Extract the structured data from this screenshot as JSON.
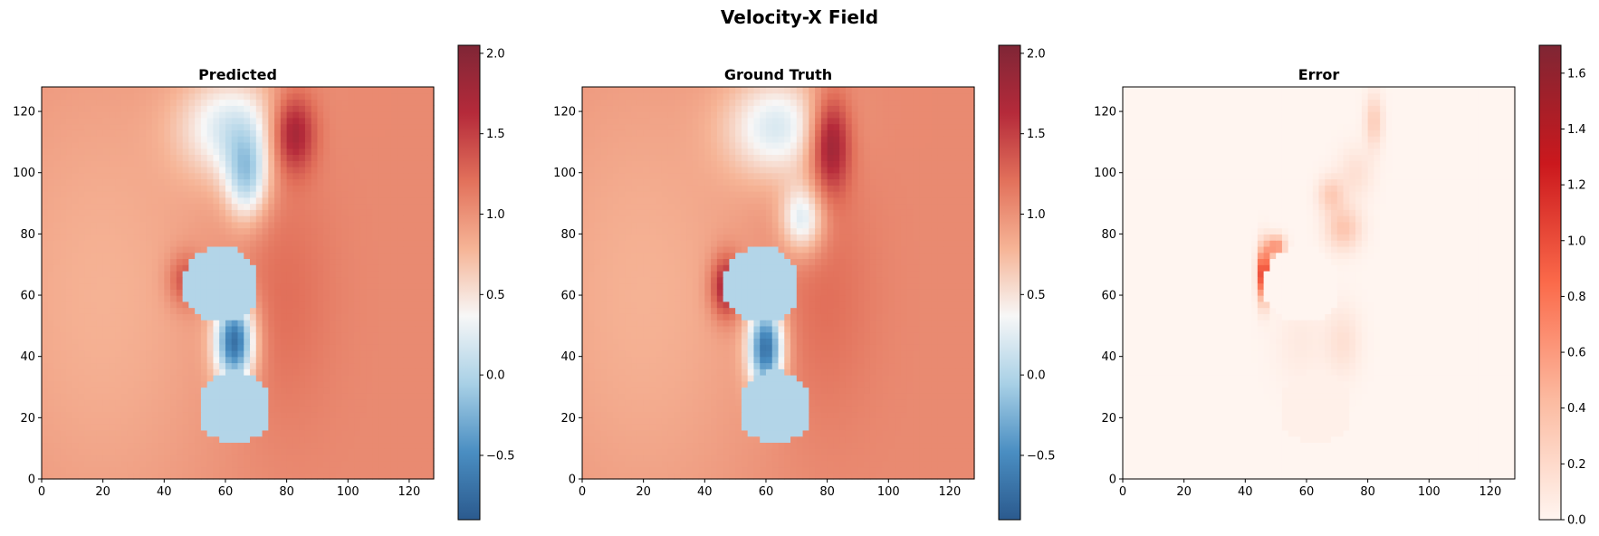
{
  "figure": {
    "title": "Velocity-X Field"
  },
  "colormap": {
    "name": "RdBu_r",
    "stops": [
      "#2b5a8e",
      "#4a8ec2",
      "#a8d0e6",
      "#f7f7f7",
      "#f6b496",
      "#e2715b",
      "#b52a3a",
      "#7f2636"
    ]
  },
  "error_colormap": {
    "name": "Reds",
    "stops": [
      "#fff5f0",
      "#fcbba1",
      "#fb6a4a",
      "#cb181d",
      "#7f2634"
    ]
  },
  "chart_data": [
    {
      "type": "heatmap",
      "title": "Predicted",
      "xlim": [
        0,
        128
      ],
      "ylim": [
        0,
        128
      ],
      "xticks": [
        0,
        20,
        40,
        60,
        80,
        100,
        120
      ],
      "yticks": [
        0,
        20,
        40,
        60,
        80,
        100,
        120
      ],
      "colorbar": {
        "vmin": -0.9,
        "vmax": 2.05,
        "ticks": [
          -0.5,
          0.0,
          0.5,
          1.0,
          1.5,
          2.0
        ],
        "tick_labels": [
          "−0.5",
          "0.0",
          "0.5",
          "1.0",
          "1.5",
          "2.0"
        ]
      },
      "field": {
        "free_stream": 1.05,
        "obstacles": [
          {
            "cx": 58.5,
            "cy": 63.5,
            "r": 12.5,
            "value": 0.0
          },
          {
            "cx": 63,
            "cy": 23.5,
            "r": 12,
            "value": 0.0
          }
        ],
        "features": [
          {
            "cx": 82,
            "cy": 113,
            "sx": 5,
            "sy": 9,
            "amp": 0.85
          },
          {
            "cx": 47,
            "cy": 65,
            "sx": 4,
            "sy": 6,
            "amp": 0.5
          },
          {
            "cx": 78,
            "cy": 60,
            "sx": 12,
            "sy": 30,
            "amp": 0.2
          },
          {
            "cx": 63,
            "cy": 45,
            "sx": 4.5,
            "sy": 10,
            "amp": -1.75
          },
          {
            "cx": 67,
            "cy": 98,
            "sx": 5,
            "sy": 10,
            "amp": -0.9
          },
          {
            "cx": 62,
            "cy": 115,
            "sx": 12,
            "sy": 12,
            "amp": -0.8
          },
          {
            "cx": 20,
            "cy": 60,
            "sx": 30,
            "sy": 60,
            "amp": -0.25
          }
        ]
      }
    },
    {
      "type": "heatmap",
      "title": "Ground Truth",
      "xlim": [
        0,
        128
      ],
      "ylim": [
        0,
        128
      ],
      "xticks": [
        0,
        20,
        40,
        60,
        80,
        100,
        120
      ],
      "yticks": [
        0,
        20,
        40,
        60,
        80,
        100,
        120
      ],
      "colorbar": {
        "vmin": -0.9,
        "vmax": 2.05,
        "ticks": [
          -0.5,
          0.0,
          0.5,
          1.0,
          1.5,
          2.0
        ],
        "tick_labels": [
          "−0.5",
          "0.0",
          "0.5",
          "1.0",
          "1.5",
          "2.0"
        ]
      },
      "field": {
        "free_stream": 1.05,
        "obstacles": [
          {
            "cx": 58.5,
            "cy": 63.5,
            "r": 12.5,
            "value": 0.0
          },
          {
            "cx": 63,
            "cy": 23.5,
            "r": 12,
            "value": 0.0
          }
        ],
        "features": [
          {
            "cx": 81,
            "cy": 110,
            "sx": 4.5,
            "sy": 11,
            "amp": 0.95
          },
          {
            "cx": 47,
            "cy": 63,
            "sx": 3.5,
            "sy": 7,
            "amp": 0.85
          },
          {
            "cx": 78,
            "cy": 60,
            "sx": 12,
            "sy": 30,
            "amp": 0.2
          },
          {
            "cx": 60,
            "cy": 43,
            "sx": 4,
            "sy": 10,
            "amp": -1.7
          },
          {
            "cx": 72,
            "cy": 85,
            "sx": 5,
            "sy": 8,
            "amp": -0.85
          },
          {
            "cx": 64,
            "cy": 115,
            "sx": 12,
            "sy": 12,
            "amp": -0.8
          },
          {
            "cx": 20,
            "cy": 60,
            "sx": 30,
            "sy": 60,
            "amp": -0.25
          }
        ]
      }
    },
    {
      "type": "heatmap",
      "title": "Error",
      "xlim": [
        0,
        128
      ],
      "ylim": [
        0,
        128
      ],
      "xticks": [
        0,
        20,
        40,
        60,
        80,
        100,
        120
      ],
      "yticks": [
        0,
        20,
        40,
        60,
        80,
        100,
        120
      ],
      "colorbar": {
        "vmin": 0.0,
        "vmax": 1.7,
        "ticks": [
          0.0,
          0.2,
          0.4,
          0.6,
          0.8,
          1.0,
          1.2,
          1.4,
          1.6
        ],
        "tick_labels": [
          "0.0",
          "0.2",
          "0.4",
          "0.6",
          "0.8",
          "1.0",
          "1.2",
          "1.4",
          "1.6"
        ]
      },
      "field": {
        "free_stream": 0.0,
        "obstacles": [
          {
            "cx": 58.5,
            "cy": 63.5,
            "r": 12.5,
            "value": 0.0
          },
          {
            "cx": 63,
            "cy": 23.5,
            "r": 12,
            "value": 0.04
          }
        ],
        "features": [
          {
            "cx": 46,
            "cy": 67,
            "sx": 1.3,
            "sy": 6,
            "amp": 1.3
          },
          {
            "cx": 50,
            "cy": 76,
            "sx": 2,
            "sy": 2.5,
            "amp": 0.7
          },
          {
            "cx": 72,
            "cy": 82,
            "sx": 4,
            "sy": 5,
            "amp": 0.35
          },
          {
            "cx": 68,
            "cy": 93,
            "sx": 3,
            "sy": 4,
            "amp": 0.3
          },
          {
            "cx": 82,
            "cy": 117,
            "sx": 2,
            "sy": 6,
            "amp": 0.3
          },
          {
            "cx": 76,
            "cy": 100,
            "sx": 4,
            "sy": 6,
            "amp": 0.15
          },
          {
            "cx": 72,
            "cy": 45,
            "sx": 4,
            "sy": 8,
            "amp": 0.15
          },
          {
            "cx": 58,
            "cy": 45,
            "sx": 6,
            "sy": 10,
            "amp": 0.08
          }
        ]
      }
    }
  ]
}
